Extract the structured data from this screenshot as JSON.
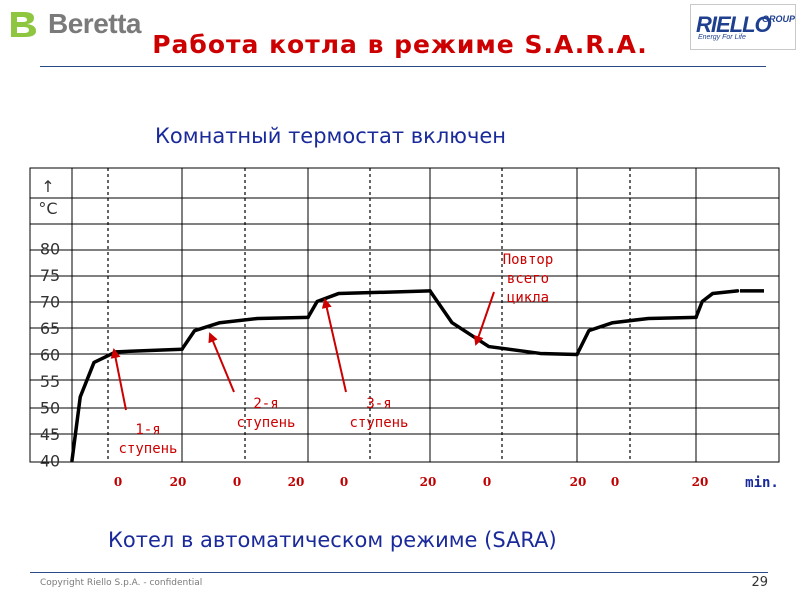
{
  "header": {
    "left_logo_text": "Beretta",
    "right_logo_name": "RIELLO",
    "right_logo_group": "GROUP",
    "right_logo_tagline": "Energy For Life",
    "title": "Работа котла в режиме S.A.R.A."
  },
  "subtitle": "Комнатный термостат включен",
  "caption": "Котел в автоматическом режиме (SARA)",
  "footer": {
    "copyright": "Copyright  Riello S.p.A. - confidential",
    "page_number": "29"
  },
  "colors": {
    "title": "#cc0000",
    "text_blue": "#1a2a9a",
    "axis_x_labels": "#c00000",
    "annotation": "#cc0000",
    "curve": "#000000",
    "grid": "#000000"
  },
  "chart_data": {
    "type": "line",
    "y_unit_arrow": "↑",
    "y_unit": "°C",
    "y_ticks": [
      "80",
      "75",
      "70",
      "65",
      "60",
      "55",
      "50",
      "45",
      "40"
    ],
    "ylim": [
      40,
      80
    ],
    "x_tick_labels": [
      "0",
      "20",
      "0",
      "20",
      "0",
      "20",
      "0",
      "20",
      "0",
      "20"
    ],
    "x_unit": "min.",
    "grid": true,
    "legend": "none",
    "segments": [
      {
        "name": "stage1",
        "points": [
          [
            0,
            40
          ],
          [
            1.5,
            52
          ],
          [
            4,
            58.5
          ],
          [
            8,
            60.5
          ],
          [
            20,
            61
          ]
        ]
      },
      {
        "name": "stage2",
        "points": [
          [
            0,
            61
          ],
          [
            2,
            64.5
          ],
          [
            6,
            66
          ],
          [
            12,
            66.8
          ],
          [
            20,
            67
          ]
        ]
      },
      {
        "name": "stage3",
        "points": [
          [
            0,
            67
          ],
          [
            1.5,
            70
          ],
          [
            5,
            71.5
          ],
          [
            20,
            72
          ]
        ]
      },
      {
        "name": "cycle_repeat",
        "points": [
          [
            0,
            72
          ],
          [
            3,
            66
          ],
          [
            8,
            61.5
          ],
          [
            15,
            60.2
          ],
          [
            20,
            60
          ]
        ]
      },
      {
        "name": "stage2_repeat",
        "points": [
          [
            0,
            60
          ],
          [
            2,
            64.5
          ],
          [
            6,
            66
          ],
          [
            12,
            66.8
          ],
          [
            20,
            67
          ]
        ]
      },
      {
        "name": "stage3_repeat_dashed",
        "points": [
          [
            0,
            67
          ],
          [
            1.5,
            70
          ],
          [
            4,
            71.5
          ],
          [
            10,
            72
          ]
        ]
      }
    ],
    "annotations": [
      {
        "lines": [
          "1-я",
          "ступень"
        ]
      },
      {
        "lines": [
          "2-я",
          "ступень"
        ]
      },
      {
        "lines": [
          "3-я",
          "ступень"
        ]
      },
      {
        "lines": [
          "Повтор",
          "всего",
          "цикла"
        ]
      }
    ]
  }
}
